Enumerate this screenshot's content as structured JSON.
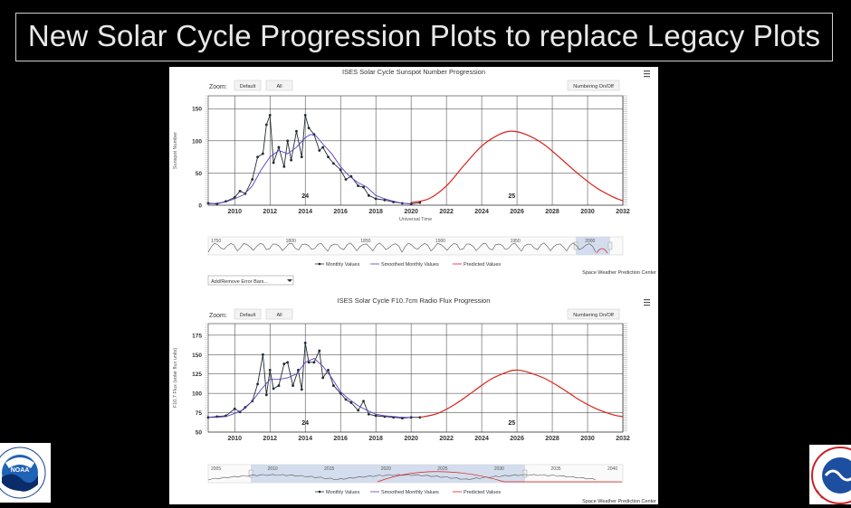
{
  "slide": {
    "title": "New Solar Cycle Progression Plots to replace Legacy Plots"
  },
  "toolbar": {
    "zoom_label": "Zoom:",
    "default_button": "Default",
    "all_button": "All",
    "numbering_toggle": "Numbering On/Off",
    "menu_icon": "hamburger-menu-icon"
  },
  "legend": {
    "monthly": "Monthly Values",
    "smoothed": "Smoothed Monthly Values",
    "predicted": "Predicted Values"
  },
  "credit": "Space Weather Prediction Center",
  "error_bars_select": "Add/Remove Error Bars...",
  "colors": {
    "monthly": "#1f2a33",
    "smoothed": "#5a3fc0",
    "predicted": "#d9211a",
    "navigator_range": "#c9d6ea"
  },
  "chart_data": [
    {
      "type": "line",
      "title": "ISES Solar Cycle Sunspot Number Progression",
      "xlabel": "Universal Time",
      "ylabel": "Sunspot Number",
      "x_ticks": [
        "2010",
        "2012",
        "2014",
        "2016",
        "2018",
        "2020",
        "2022",
        "2024",
        "2026",
        "2028",
        "2030",
        "2032"
      ],
      "y_ticks": [
        "0",
        "50",
        "100",
        "150"
      ],
      "xlim": [
        2008.5,
        2032
      ],
      "ylim": [
        0,
        170
      ],
      "cycle_labels": [
        {
          "text": "24",
          "x": 2014.0
        },
        {
          "text": "25",
          "x": 2025.7
        }
      ],
      "navigator_ticks": [
        "1750",
        "1800",
        "1850",
        "1900",
        "1950",
        "2000"
      ],
      "series": [
        {
          "name": "Monthly Values",
          "x": [
            2008.5,
            2009.0,
            2009.5,
            2010.0,
            2010.3,
            2010.6,
            2011.0,
            2011.3,
            2011.6,
            2011.8,
            2012.0,
            2012.2,
            2012.5,
            2012.8,
            2013.0,
            2013.2,
            2013.5,
            2013.8,
            2014.0,
            2014.2,
            2014.5,
            2014.8,
            2015.0,
            2015.3,
            2015.6,
            2016.0,
            2016.3,
            2016.6,
            2017.0,
            2017.3,
            2017.6,
            2018.0,
            2018.5,
            2019.0,
            2019.5,
            2020.0,
            2020.5
          ],
          "y": [
            3,
            2,
            6,
            12,
            22,
            18,
            40,
            75,
            80,
            125,
            140,
            66,
            90,
            60,
            100,
            70,
            115,
            75,
            140,
            120,
            110,
            85,
            90,
            75,
            65,
            55,
            40,
            45,
            30,
            28,
            15,
            10,
            8,
            5,
            3,
            2,
            4
          ]
        },
        {
          "name": "Smoothed Monthly Values",
          "x": [
            2008.5,
            2009.0,
            2009.5,
            2010.0,
            2010.5,
            2011.0,
            2011.5,
            2012.0,
            2012.5,
            2013.0,
            2013.5,
            2014.0,
            2014.3,
            2014.6,
            2015.0,
            2015.5,
            2016.0,
            2016.5,
            2017.0,
            2017.5,
            2018.0,
            2018.5,
            2019.0,
            2019.5,
            2020.0
          ],
          "y": [
            2,
            3,
            5,
            10,
            16,
            30,
            55,
            75,
            85,
            80,
            90,
            105,
            110,
            108,
            95,
            80,
            60,
            45,
            35,
            28,
            15,
            10,
            6,
            3,
            2
          ]
        },
        {
          "name": "Predicted Values",
          "x": [
            2020.0,
            2021.0,
            2022.0,
            2023.0,
            2024.0,
            2025.0,
            2025.7,
            2026.5,
            2027.5,
            2028.5,
            2029.5,
            2030.5,
            2031.5,
            2032.0
          ],
          "y": [
            4,
            10,
            30,
            62,
            92,
            110,
            115,
            110,
            95,
            72,
            48,
            27,
            12,
            7
          ]
        }
      ]
    },
    {
      "type": "line",
      "title": "ISES Solar Cycle F10.7cm Radio Flux Progression",
      "xlabel": "",
      "ylabel": "F10.7 Flux (solar flux units)",
      "x_ticks": [
        "2010",
        "2012",
        "2014",
        "2016",
        "2018",
        "2020",
        "2022",
        "2024",
        "2026",
        "2028",
        "2030",
        "2032"
      ],
      "y_ticks": [
        "50",
        "75",
        "100",
        "125",
        "150",
        "175"
      ],
      "xlim": [
        2008.5,
        2032
      ],
      "ylim": [
        50,
        190
      ],
      "cycle_labels": [
        {
          "text": "24",
          "x": 2014.0
        },
        {
          "text": "25",
          "x": 2025.7
        }
      ],
      "navigator_ticks": [
        "2005",
        "2010",
        "2015",
        "2020",
        "2025",
        "2030",
        "2035",
        "2040"
      ],
      "series": [
        {
          "name": "Monthly Values",
          "x": [
            2008.5,
            2009.0,
            2009.5,
            2010.0,
            2010.3,
            2010.6,
            2011.0,
            2011.3,
            2011.6,
            2011.8,
            2012.0,
            2012.2,
            2012.5,
            2012.8,
            2013.0,
            2013.3,
            2013.6,
            2013.8,
            2014.0,
            2014.2,
            2014.5,
            2014.8,
            2015.0,
            2015.3,
            2015.6,
            2016.0,
            2016.3,
            2016.6,
            2017.0,
            2017.3,
            2017.6,
            2018.0,
            2018.5,
            2019.0,
            2019.5,
            2020.0,
            2020.5
          ],
          "y": [
            69,
            70,
            71,
            80,
            76,
            82,
            90,
            112,
            150,
            98,
            130,
            106,
            110,
            138,
            140,
            110,
            130,
            105,
            165,
            140,
            140,
            155,
            120,
            130,
            110,
            100,
            92,
            88,
            78,
            90,
            73,
            71,
            70,
            69,
            68,
            69,
            69
          ]
        },
        {
          "name": "Smoothed Monthly Values",
          "x": [
            2008.5,
            2009.0,
            2009.5,
            2010.0,
            2010.5,
            2011.0,
            2011.5,
            2012.0,
            2012.5,
            2013.0,
            2013.5,
            2014.0,
            2014.5,
            2015.0,
            2015.5,
            2016.0,
            2016.5,
            2017.0,
            2017.5,
            2018.0,
            2018.5,
            2019.0,
            2019.5,
            2020.0
          ],
          "y": [
            69,
            69,
            70,
            74,
            79,
            90,
            105,
            118,
            118,
            120,
            125,
            140,
            145,
            135,
            120,
            102,
            92,
            84,
            78,
            73,
            71,
            70,
            69,
            69
          ]
        },
        {
          "name": "Predicted Values",
          "x": [
            2020.5,
            2021.5,
            2022.5,
            2023.5,
            2024.5,
            2025.5,
            2026.0,
            2026.5,
            2027.5,
            2028.5,
            2029.5,
            2030.5,
            2031.5,
            2032.0
          ],
          "y": [
            69,
            74,
            86,
            102,
            118,
            128,
            130,
            128,
            120,
            107,
            92,
            80,
            72,
            70
          ]
        }
      ]
    }
  ]
}
